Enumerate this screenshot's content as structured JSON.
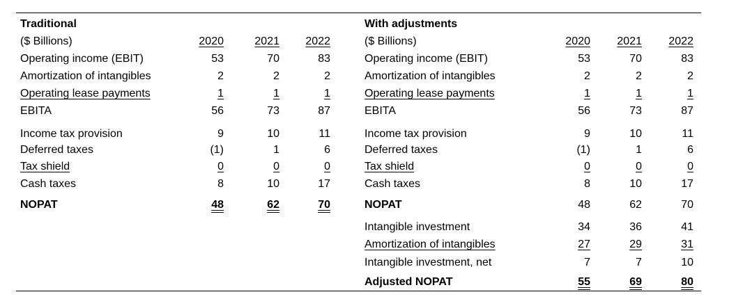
{
  "traditional": {
    "title": "Traditional",
    "unit_label": "($ Billions)",
    "years": [
      "2020",
      "2021",
      "2022"
    ],
    "rows": [
      {
        "label": "Operating income (EBIT)",
        "values": [
          "53",
          "70",
          "83"
        ]
      },
      {
        "label": "Amortization of intangibles",
        "values": [
          "2",
          "2",
          "2"
        ]
      },
      {
        "label": "Operating lease payments",
        "values": [
          "1",
          "1",
          "1"
        ]
      },
      {
        "label": "EBITA",
        "values": [
          "56",
          "73",
          "87"
        ]
      },
      {
        "label": "Income tax provision",
        "values": [
          "9",
          "10",
          "11"
        ]
      },
      {
        "label": "Deferred taxes",
        "values": [
          "(1)",
          "1",
          "6"
        ]
      },
      {
        "label": "Tax shield",
        "values": [
          "0",
          "0",
          "0"
        ]
      },
      {
        "label": "Cash taxes",
        "values": [
          "8",
          "10",
          "17"
        ]
      },
      {
        "label": "NOPAT",
        "values": [
          "48",
          "62",
          "70"
        ]
      }
    ]
  },
  "adjusted": {
    "title": "With adjustments",
    "unit_label": "($ Billions)",
    "years": [
      "2020",
      "2021",
      "2022"
    ],
    "rows": [
      {
        "label": "Operating income (EBIT)",
        "values": [
          "53",
          "70",
          "83"
        ]
      },
      {
        "label": "Amortization of intangibles",
        "values": [
          "2",
          "2",
          "2"
        ]
      },
      {
        "label": "Operating lease payments",
        "values": [
          "1",
          "1",
          "1"
        ]
      },
      {
        "label": "EBITA",
        "values": [
          "56",
          "73",
          "87"
        ]
      },
      {
        "label": "Income tax provision",
        "values": [
          "9",
          "10",
          "11"
        ]
      },
      {
        "label": "Deferred taxes",
        "values": [
          "(1)",
          "1",
          "6"
        ]
      },
      {
        "label": "Tax shield",
        "values": [
          "0",
          "0",
          "0"
        ]
      },
      {
        "label": "Cash taxes",
        "values": [
          "8",
          "10",
          "17"
        ]
      },
      {
        "label": "NOPAT",
        "values": [
          "48",
          "62",
          "70"
        ]
      },
      {
        "label": "Intangible investment",
        "values": [
          "34",
          "36",
          "41"
        ]
      },
      {
        "label": "Amortization of intangibles",
        "values": [
          "27",
          "29",
          "31"
        ]
      },
      {
        "label": "Intangible investment, net",
        "values": [
          "7",
          "7",
          "10"
        ]
      },
      {
        "label": "Adjusted NOPAT",
        "values": [
          "55",
          "69",
          "80"
        ]
      }
    ]
  }
}
